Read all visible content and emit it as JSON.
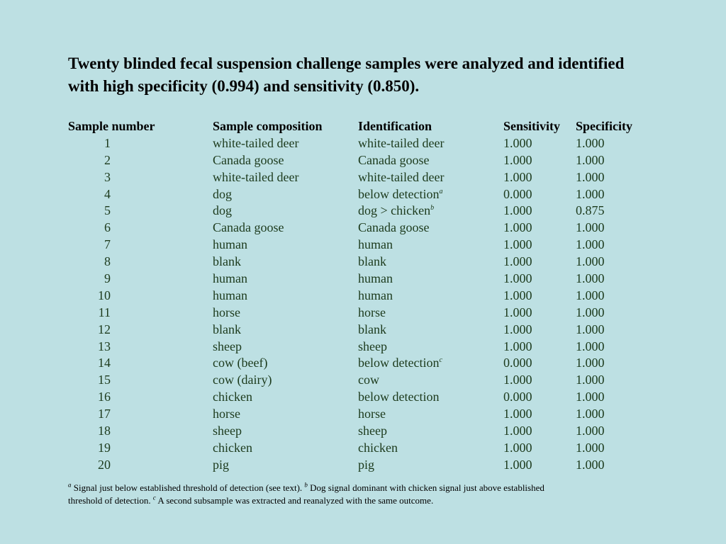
{
  "title": "Twenty blinded fecal suspension challenge samples were analyzed and identified with high specificity (0.994) and sensitivity (0.850).",
  "columns": [
    "Sample number",
    "Sample composition",
    "Identification",
    "Sensitivity",
    "Specificity"
  ],
  "rows": [
    {
      "n": "1",
      "comp": "white-tailed deer",
      "id": "white-tailed deer",
      "id_note": "",
      "sens": "1.000",
      "spec": "1.000"
    },
    {
      "n": "2",
      "comp": "Canada goose",
      "id": "Canada goose",
      "id_note": "",
      "sens": "1.000",
      "spec": "1.000"
    },
    {
      "n": "3",
      "comp": "white-tailed deer",
      "id": "white-tailed deer",
      "id_note": "",
      "sens": "1.000",
      "spec": "1.000"
    },
    {
      "n": "4",
      "comp": "dog",
      "id": "below detection",
      "id_note": "a",
      "sens": "0.000",
      "spec": "1.000"
    },
    {
      "n": "5",
      "comp": "dog",
      "id": "dog > chicken",
      "id_note": "b",
      "sens": "1.000",
      "spec": "0.875"
    },
    {
      "n": "6",
      "comp": "Canada goose",
      "id": "Canada goose",
      "id_note": "",
      "sens": "1.000",
      "spec": "1.000"
    },
    {
      "n": "7",
      "comp": "human",
      "id": "human",
      "id_note": "",
      "sens": "1.000",
      "spec": "1.000"
    },
    {
      "n": "8",
      "comp": "blank",
      "id": "blank",
      "id_note": "",
      "sens": "1.000",
      "spec": "1.000"
    },
    {
      "n": "9",
      "comp": "human",
      "id": "human",
      "id_note": "",
      "sens": "1.000",
      "spec": "1.000"
    },
    {
      "n": "10",
      "comp": "human",
      "id": "human",
      "id_note": "",
      "sens": "1.000",
      "spec": "1.000"
    },
    {
      "n": "11",
      "comp": "horse",
      "id": "horse",
      "id_note": "",
      "sens": "1.000",
      "spec": "1.000"
    },
    {
      "n": "12",
      "comp": "blank",
      "id": "blank",
      "id_note": "",
      "sens": "1.000",
      "spec": "1.000"
    },
    {
      "n": "13",
      "comp": "sheep",
      "id": "sheep",
      "id_note": "",
      "sens": "1.000",
      "spec": "1.000"
    },
    {
      "n": "14",
      "comp": "cow (beef)",
      "id": "below detection",
      "id_note": "c",
      "sens": "0.000",
      "spec": "1.000"
    },
    {
      "n": "15",
      "comp": "cow (dairy)",
      "id": "cow",
      "id_note": "",
      "sens": "1.000",
      "spec": "1.000"
    },
    {
      "n": "16",
      "comp": "chicken",
      "id": "below detection",
      "id_note": "",
      "sens": "0.000",
      "spec": "1.000"
    },
    {
      "n": "17",
      "comp": "horse",
      "id": "horse",
      "id_note": "",
      "sens": "1.000",
      "spec": "1.000"
    },
    {
      "n": "18",
      "comp": "sheep",
      "id": "sheep",
      "id_note": "",
      "sens": "1.000",
      "spec": "1.000"
    },
    {
      "n": "19",
      "comp": "chicken",
      "id": "chicken",
      "id_note": "",
      "sens": "1.000",
      "spec": "1.000"
    },
    {
      "n": "20",
      "comp": "pig",
      "id": "pig",
      "id_note": "",
      "sens": "1.000",
      "spec": "1.000"
    }
  ],
  "footnotes": [
    {
      "mark": "a",
      "text": "Signal just below established threshold of detection (see text)."
    },
    {
      "mark": "b",
      "text": "Dog signal dominant with chicken signal just above established threshold of detection."
    },
    {
      "mark": "c",
      "text": "A second subsample was extracted and reanalyzed with the same outcome."
    }
  ],
  "colors": {
    "background": "#bde0e3",
    "body_text": "#1c3a1c"
  }
}
